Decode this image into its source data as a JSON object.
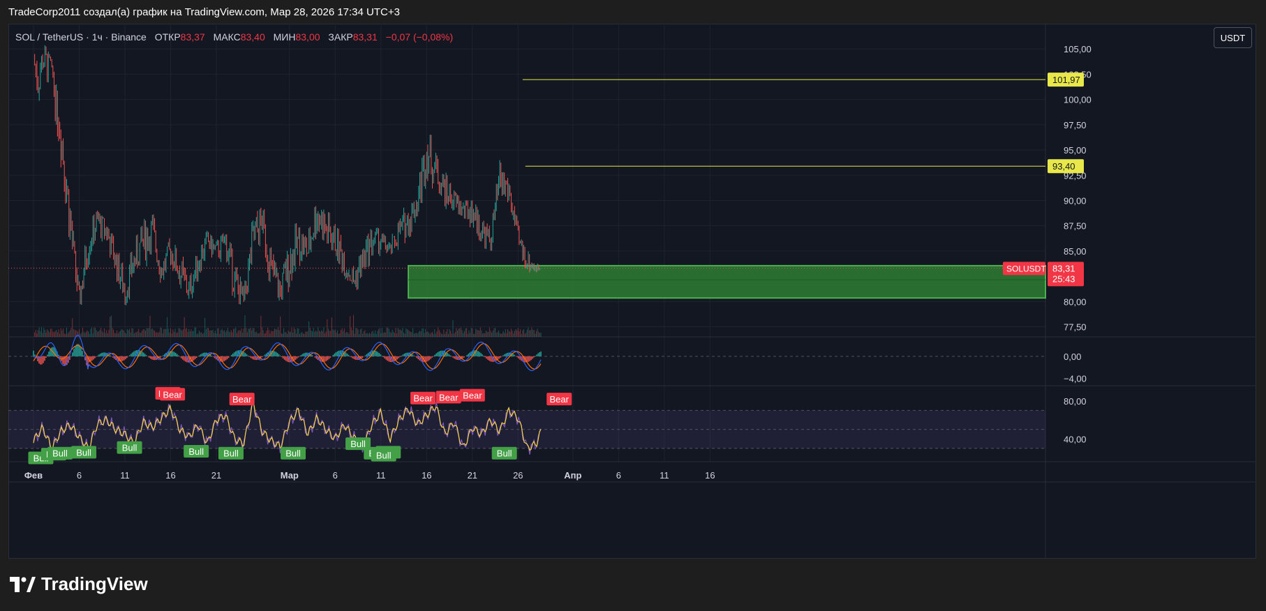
{
  "header": {
    "attribution": "TradeCorp2011 создал(а) график на TradingView.com, Мар 28, 2026 17:34 UTC+3"
  },
  "symbol": {
    "pair": "SOL / TetherUS · 1ч · Binance",
    "open_label": "ОТКР",
    "open": "83,37",
    "high_label": "МАКС",
    "high": "83,40",
    "low_label": "МИН",
    "low": "83,00",
    "close_label": "ЗАКР",
    "close": "83,31",
    "change": "−0,07 (−0,08%)"
  },
  "currency_button": "USDT",
  "brand": "TradingView",
  "colors": {
    "up": "#26a69a",
    "down": "#ef5350",
    "level": "#e8e84a",
    "zone": "#2e7d32",
    "zone_border": "#4caf50",
    "macd": "#2962ff",
    "signal": "#ff6d00",
    "rsi": "#7e57c2",
    "stoch": "#f5d142",
    "bull": "#43a047",
    "bear": "#f23645"
  },
  "chart_data": {
    "type": "line",
    "price_axis": {
      "ticks": [
        "105,00",
        "102,50",
        "100,00",
        "97,50",
        "95,00",
        "92,50",
        "90,00",
        "87,50",
        "85,00",
        "80,00",
        "77,50"
      ],
      "tick_values": [
        105,
        102.5,
        100,
        97.5,
        95,
        92.5,
        90,
        87.5,
        85,
        80,
        77.5
      ],
      "ylim": [
        76.5,
        107.5
      ]
    },
    "time_axis": {
      "labels": [
        "Фев",
        "6",
        "11",
        "16",
        "21",
        "Мар",
        "6",
        "11",
        "16",
        "21",
        "26",
        "Апр",
        "6",
        "11",
        "16"
      ],
      "days": [
        0,
        5,
        10,
        15,
        20,
        28,
        33,
        38,
        43,
        48,
        53,
        59,
        64,
        69,
        74
      ]
    },
    "price_path": {
      "x_days": [
        0,
        0.5,
        1,
        2,
        3,
        4,
        5,
        6,
        7,
        8,
        9,
        10,
        11,
        12,
        13,
        14,
        15,
        16,
        17,
        18,
        19,
        20,
        21,
        22,
        23,
        24,
        25,
        26,
        27,
        28,
        29,
        30,
        31,
        32,
        33,
        34,
        35,
        36,
        37,
        38,
        39,
        40,
        41,
        42,
        43,
        44,
        45,
        46,
        47,
        48,
        49,
        50,
        51,
        52,
        53,
        54,
        55,
        55.5
      ],
      "close": [
        104,
        102,
        104,
        103,
        97,
        88,
        80,
        86,
        88,
        87,
        84,
        81,
        84,
        86,
        87,
        83,
        85,
        83,
        81,
        84,
        86,
        85,
        86,
        82,
        80,
        86,
        88,
        83,
        81,
        84,
        86,
        85,
        89,
        87,
        86,
        84,
        82,
        84,
        86,
        86,
        85,
        87,
        88,
        90,
        95,
        93,
        91,
        90,
        89,
        89,
        87,
        86,
        92,
        91,
        86,
        84,
        83.3,
        83.31
      ],
      "high": [
        107,
        106,
        106,
        104,
        99,
        90,
        82,
        88,
        89,
        88,
        86,
        84,
        86,
        90,
        89,
        86,
        87,
        86,
        83,
        86,
        87,
        86,
        87,
        85,
        82,
        89,
        90,
        87,
        84,
        87,
        89,
        88,
        94,
        92,
        89,
        87,
        85,
        86,
        88,
        87,
        86,
        89,
        91,
        93,
        98,
        95,
        93,
        91,
        90,
        90,
        89,
        88,
        94,
        92,
        88,
        86,
        84.2,
        83.4
      ],
      "low": [
        100,
        97,
        100,
        96,
        88,
        78,
        77,
        80,
        84,
        82,
        80,
        78,
        80,
        82,
        82,
        81,
        82,
        79,
        78,
        80,
        82,
        82,
        80,
        78,
        77,
        80,
        84,
        79,
        78,
        79,
        82,
        82,
        85,
        84,
        83,
        81,
        80,
        80,
        82,
        83,
        83,
        84,
        85,
        86,
        90,
        88,
        87,
        86,
        86,
        85,
        84,
        84,
        86,
        86,
        83,
        82,
        82.3,
        83.0
      ]
    },
    "last_price": {
      "value": 83.31,
      "label": "83,31",
      "countdown": "25:43",
      "symbol": "SOLUSDT"
    },
    "levels": [
      {
        "value": 101.97,
        "label": "101,97",
        "from_day": 53.5
      },
      {
        "value": 93.4,
        "label": "93,40",
        "from_day": 53.8
      }
    ],
    "zone": {
      "top": 83.55,
      "mid": 82.15,
      "bottom": 80.35,
      "from_day": 41
    },
    "macd_panel": {
      "ticks": [
        "0,00",
        "−4,00"
      ],
      "tick_values": [
        0,
        -4
      ],
      "ylim": [
        -5.3,
        3.5
      ]
    },
    "rsi_panel": {
      "ticks": [
        "80,00",
        "40,00"
      ],
      "tick_values": [
        80,
        40
      ],
      "ylim": [
        16,
        96
      ],
      "band": [
        30,
        70
      ],
      "rsi_days": [
        0,
        1,
        2,
        3,
        4,
        5,
        6,
        7,
        8,
        9,
        10,
        11,
        12,
        13,
        14,
        15,
        16,
        17,
        18,
        19,
        20,
        21,
        22,
        23,
        24,
        25,
        26,
        27,
        28,
        29,
        30,
        31,
        32,
        33,
        34,
        35,
        36,
        37,
        38,
        39,
        40,
        41,
        42,
        43,
        44,
        45,
        46,
        47,
        48,
        49,
        50,
        51,
        52,
        53,
        54,
        55,
        55.5
      ],
      "rsi": [
        38,
        52,
        30,
        48,
        55,
        42,
        30,
        56,
        60,
        50,
        45,
        35,
        58,
        52,
        62,
        72,
        50,
        42,
        55,
        35,
        60,
        65,
        40,
        35,
        78,
        48,
        38,
        32,
        58,
        70,
        45,
        62,
        50,
        40,
        55,
        42,
        30,
        55,
        68,
        40,
        60,
        72,
        55,
        65,
        75,
        45,
        58,
        30,
        52,
        45,
        60,
        48,
        70,
        62,
        30,
        35,
        48
      ]
    },
    "signals": [
      {
        "type": "Bull",
        "label": "Bull",
        "day": 0.8,
        "rsi": 20
      },
      {
        "type": "Bull",
        "label": "Bull",
        "day": 2.2,
        "rsi": 24
      },
      {
        "type": "Bull",
        "label": "Bull",
        "day": 2.9,
        "rsi": 25
      },
      {
        "type": "Bull",
        "label": "Bull",
        "day": 5.5,
        "rsi": 26
      },
      {
        "type": "Bull",
        "label": "Bull",
        "day": 10.5,
        "rsi": 31
      },
      {
        "type": "Bear",
        "label": "Bear",
        "day": 14.7,
        "rsi": 88
      },
      {
        "type": "Bear",
        "label": "Bear",
        "day": 15.2,
        "rsi": 87
      },
      {
        "type": "Bull",
        "label": "Bull",
        "day": 17.8,
        "rsi": 27
      },
      {
        "type": "Bull",
        "label": "Bull",
        "day": 21.6,
        "rsi": 25
      },
      {
        "type": "Bear",
        "label": "Bear",
        "day": 22.8,
        "rsi": 82
      },
      {
        "type": "Bull",
        "label": "Bull",
        "day": 28.4,
        "rsi": 25
      },
      {
        "type": "Bull",
        "label": "Bull",
        "day": 35.5,
        "rsi": 35
      },
      {
        "type": "Bull",
        "label": "Bull",
        "day": 37.5,
        "rsi": 25
      },
      {
        "type": "Bull",
        "label": "Bull",
        "day": 38.8,
        "rsi": 26
      },
      {
        "type": "Bull",
        "label": "Bull",
        "day": 38.3,
        "rsi": 23
      },
      {
        "type": "Bear",
        "label": "Bear",
        "day": 42.6,
        "rsi": 83
      },
      {
        "type": "Bear",
        "label": "Bear",
        "day": 45.4,
        "rsi": 84
      },
      {
        "type": "Bear",
        "label": "Bear",
        "day": 48.0,
        "rsi": 86
      },
      {
        "type": "Bull",
        "label": "Bull",
        "day": 51.5,
        "rsi": 25
      },
      {
        "type": "Bear",
        "label": "Bear",
        "day": 57.5,
        "rsi": 82
      }
    ]
  }
}
